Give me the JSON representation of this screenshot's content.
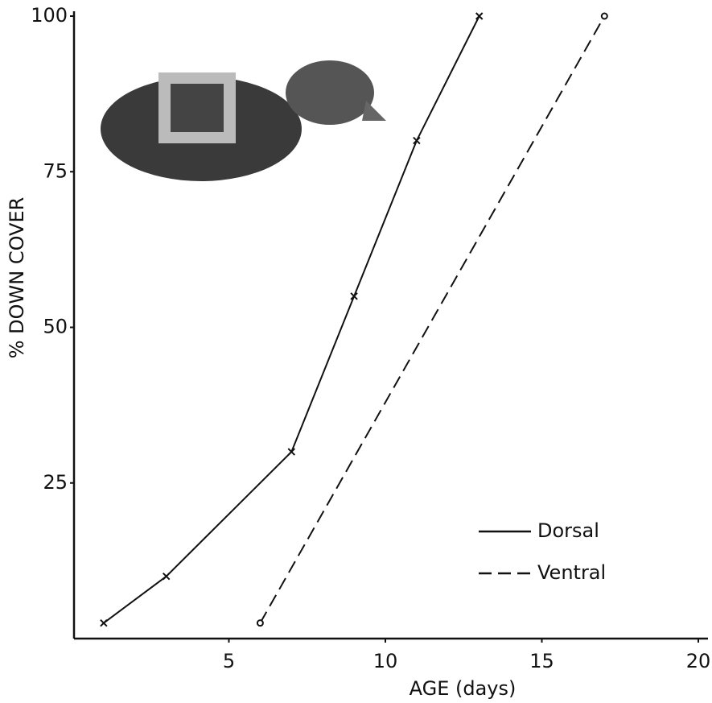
{
  "chart_data": {
    "type": "line",
    "x_label": "AGE (days)",
    "y_label": "% DOWN COVER",
    "xlim": [
      0,
      20
    ],
    "xticks": [
      5,
      10,
      15,
      20
    ],
    "ylim": [
      0,
      100
    ],
    "yticks": [
      25,
      50,
      75,
      100
    ],
    "legend": "lower right",
    "series": [
      {
        "name": "Dorsal",
        "color": "#111111",
        "linestyle": "solid",
        "marker": "x",
        "x": [
          1,
          3,
          7,
          9,
          11,
          13
        ],
        "values": [
          2.5,
          10,
          30,
          55,
          80,
          100
        ]
      },
      {
        "name": "Ventral",
        "color": "#111111",
        "linestyle": "dashed",
        "marker": "o",
        "x": [
          6,
          17
        ],
        "values": [
          2.5,
          100
        ]
      }
    ]
  }
}
